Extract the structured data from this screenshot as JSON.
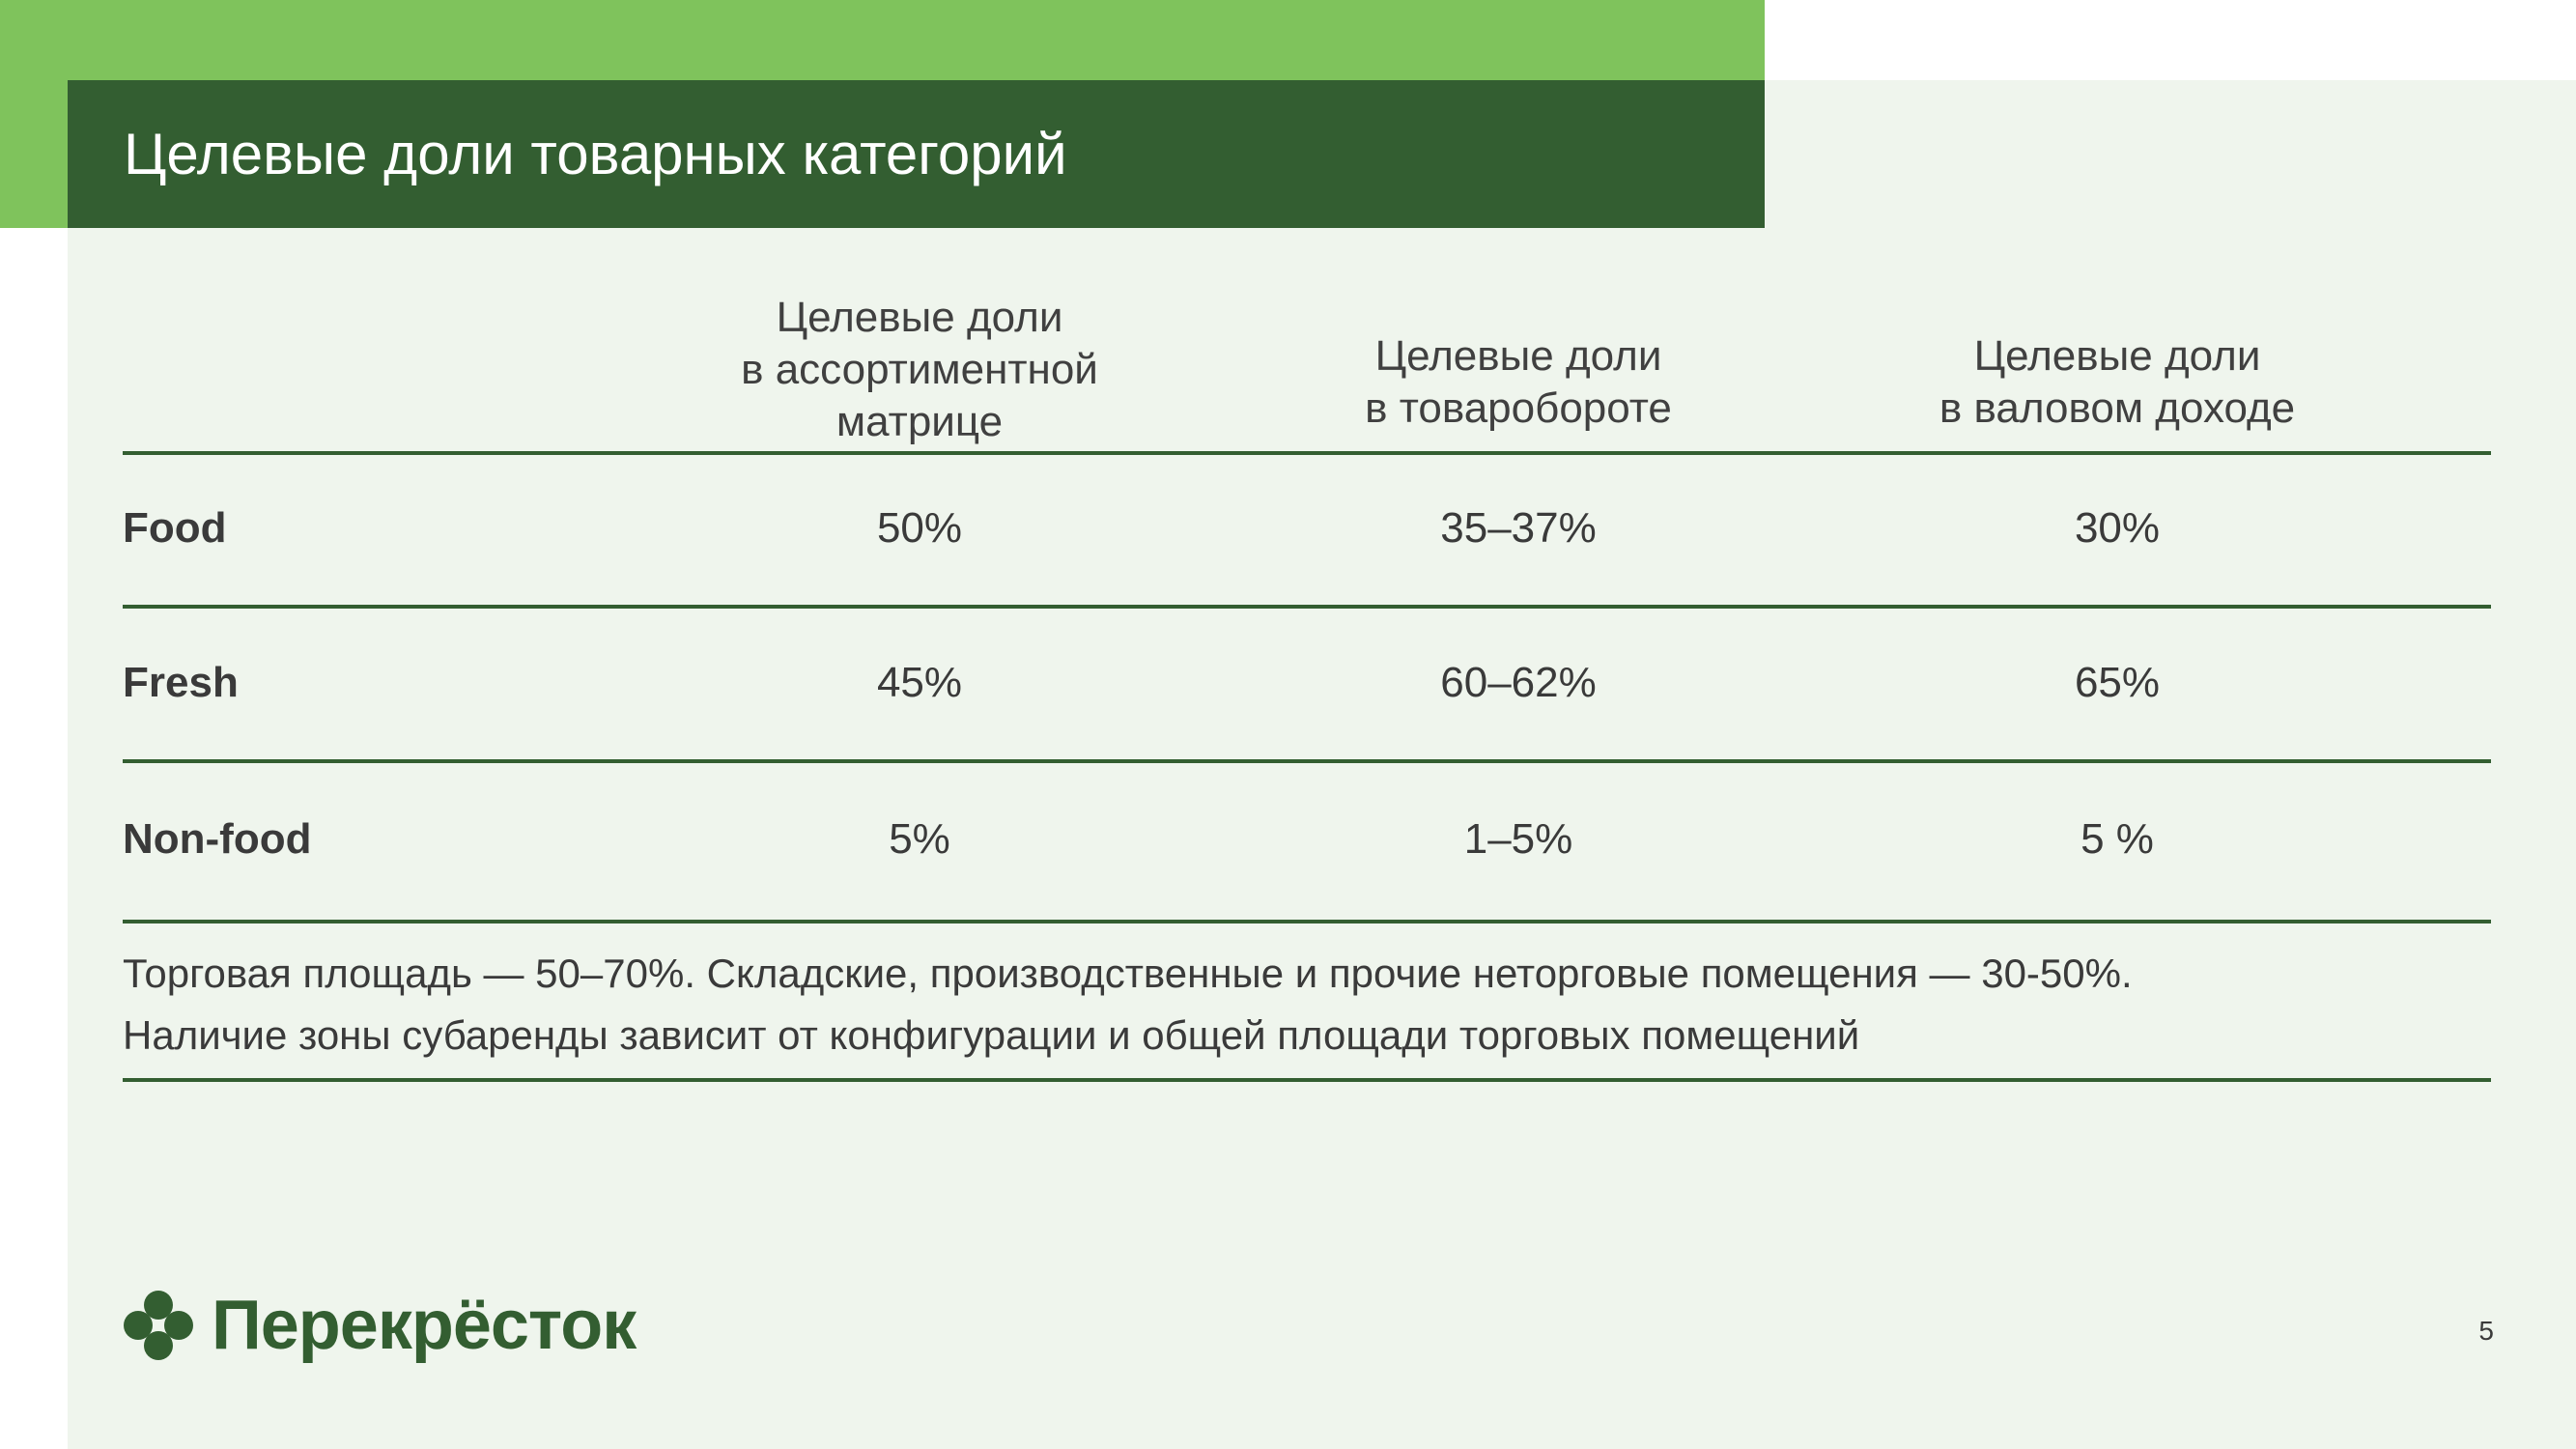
{
  "title": "Целевые доли товарных категорий",
  "table": {
    "headers": [
      [
        "Целевые доли",
        "в ассортиментной",
        "матрице"
      ],
      [
        "Целевые доли",
        "в товаробороте"
      ],
      [
        "Целевые доли",
        "в валовом доходе"
      ]
    ],
    "rows": [
      {
        "label": "Food",
        "values": [
          "50%",
          "35–37%",
          "30%"
        ]
      },
      {
        "label": "Fresh",
        "values": [
          "45%",
          "60–62%",
          "65%"
        ]
      },
      {
        "label": "Non-food",
        "values": [
          "5%",
          "1–5%",
          "5 %"
        ]
      }
    ]
  },
  "notes": [
    "Торговая площадь — 50–70%. Складские, производственные и прочие неторговые помещения — 30-50%.",
    "Наличие зоны субаренды зависит от конфигурации и общей площади торговых помещений"
  ],
  "logo": {
    "text": "Перекрёсток",
    "icon": "clover-logo-icon"
  },
  "page_number": "5",
  "colors": {
    "accent_light": "#7fc35c",
    "accent_dark": "#335e31",
    "panel_bg": "#eff5ed"
  }
}
